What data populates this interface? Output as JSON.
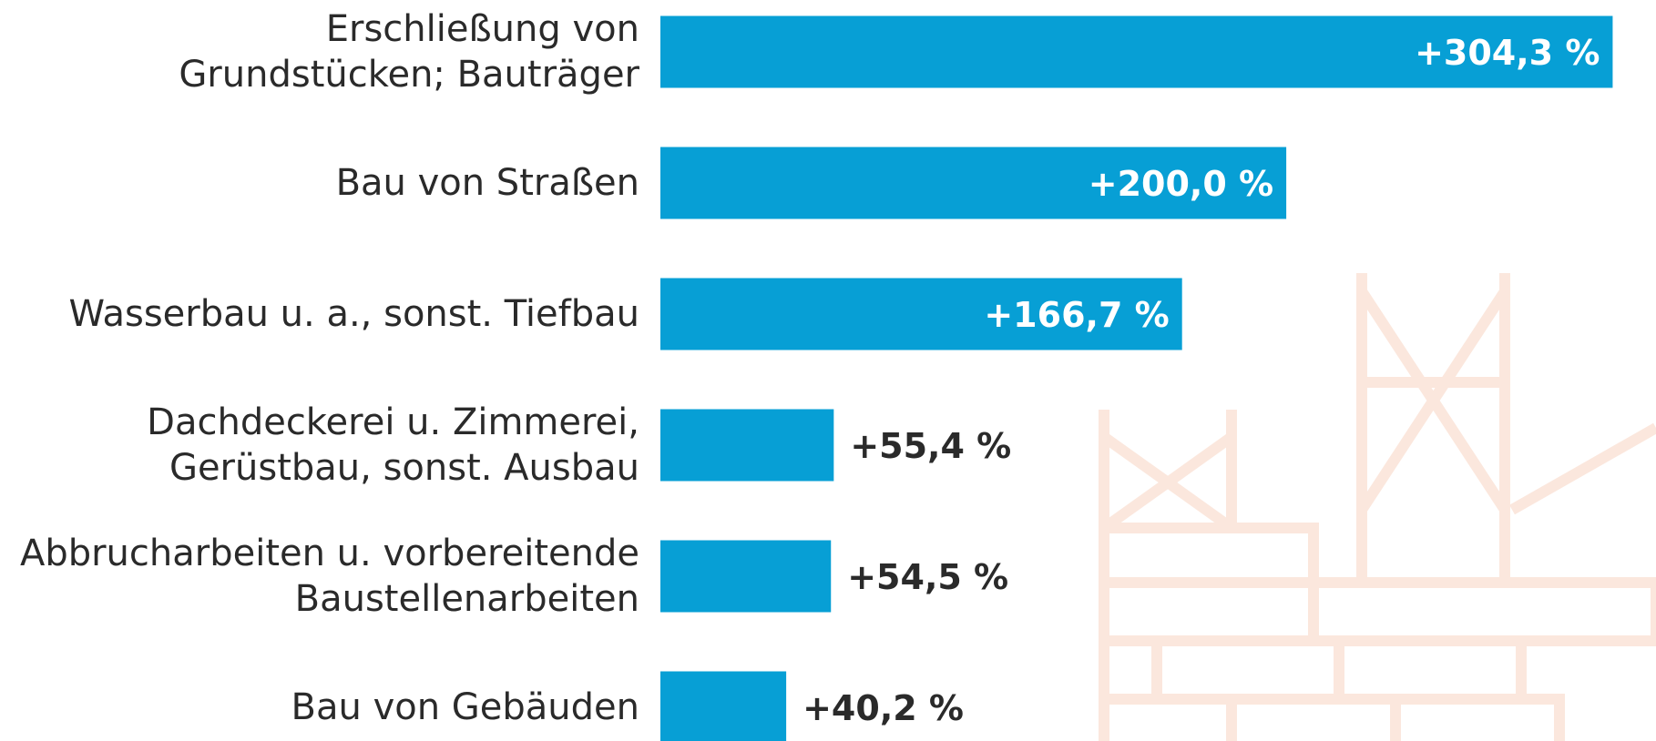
{
  "chart_data": {
    "type": "bar",
    "orientation": "horizontal",
    "categories": [
      "Erschließung von\nGrundstücken; Bauträger",
      "Bau von Straßen",
      "Wasserbau u. a., sonst. Tiefbau",
      "Dachdeckerei u. Zimmerei,\nGerüstbau, sonst. Ausbau",
      "Abbrucharbeiten u. vorbereitende\nBaustellenarbeiten",
      "Bau von Gebäuden"
    ],
    "values": [
      304.3,
      200.0,
      166.7,
      55.4,
      54.5,
      40.2
    ],
    "value_labels": [
      "+304,3 %",
      "+200,0 %",
      "+166,7 %",
      "+55,4 %",
      "+54,5 %",
      "+40,2 %"
    ],
    "color": "#079fd5",
    "xlim": [
      0,
      310
    ]
  }
}
